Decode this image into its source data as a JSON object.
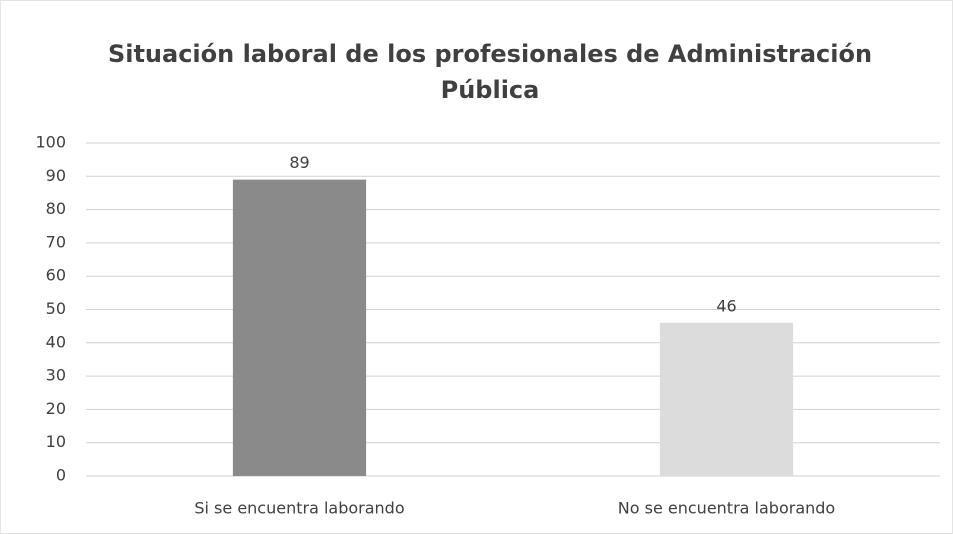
{
  "chart_data": {
    "type": "bar",
    "title": "Situación laboral de los profesionales de Administración Pública",
    "categories": [
      "Si se encuentra laborando",
      "No se encuentra laborando"
    ],
    "values": [
      89,
      46
    ],
    "colors": [
      "#8a8a8a",
      "#dcdcdc"
    ],
    "ylim": [
      0,
      100
    ],
    "yticks": [
      0,
      10,
      20,
      30,
      40,
      50,
      60,
      70,
      80,
      90,
      100
    ],
    "grid": true
  }
}
